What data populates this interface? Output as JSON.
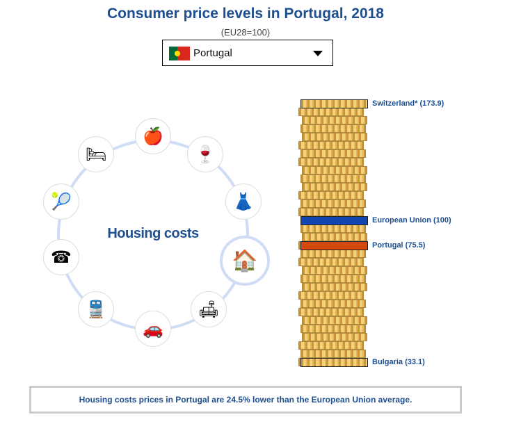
{
  "title": "Consumer price levels in Portugal, 2018",
  "subtitle": "(EU28=100)",
  "country_select": {
    "value": "Portugal",
    "flag": "portugal-flag"
  },
  "categories": {
    "selected": "Housing costs",
    "items": [
      {
        "name": "food",
        "icon": "🍎"
      },
      {
        "name": "alcohol-tobacco",
        "icon": "🍷"
      },
      {
        "name": "clothing",
        "icon": "👗"
      },
      {
        "name": "housing",
        "icon": "🏠"
      },
      {
        "name": "furnishings",
        "icon": "🛋"
      },
      {
        "name": "personal-transport",
        "icon": "🚗"
      },
      {
        "name": "transport-services",
        "icon": "🚆"
      },
      {
        "name": "communication",
        "icon": "☎"
      },
      {
        "name": "recreation",
        "icon": "🎾"
      },
      {
        "name": "restaurants-hotels",
        "icon": "🛏"
      }
    ]
  },
  "stack": {
    "markers": [
      {
        "label": "Switzerland* (173.9)",
        "value": 173.9,
        "color": "#e0b352"
      },
      {
        "label": "European Union (100)",
        "value": 100,
        "color": "#1346b0"
      },
      {
        "label": "Portugal (75.5)",
        "value": 75.5,
        "color": "#d24a10"
      },
      {
        "label": "Bulgaria (33.1)",
        "value": 33.1,
        "color": "#e0b352"
      }
    ]
  },
  "note": "Housing costs prices in Portugal are 24.5% lower than the European Union average."
}
